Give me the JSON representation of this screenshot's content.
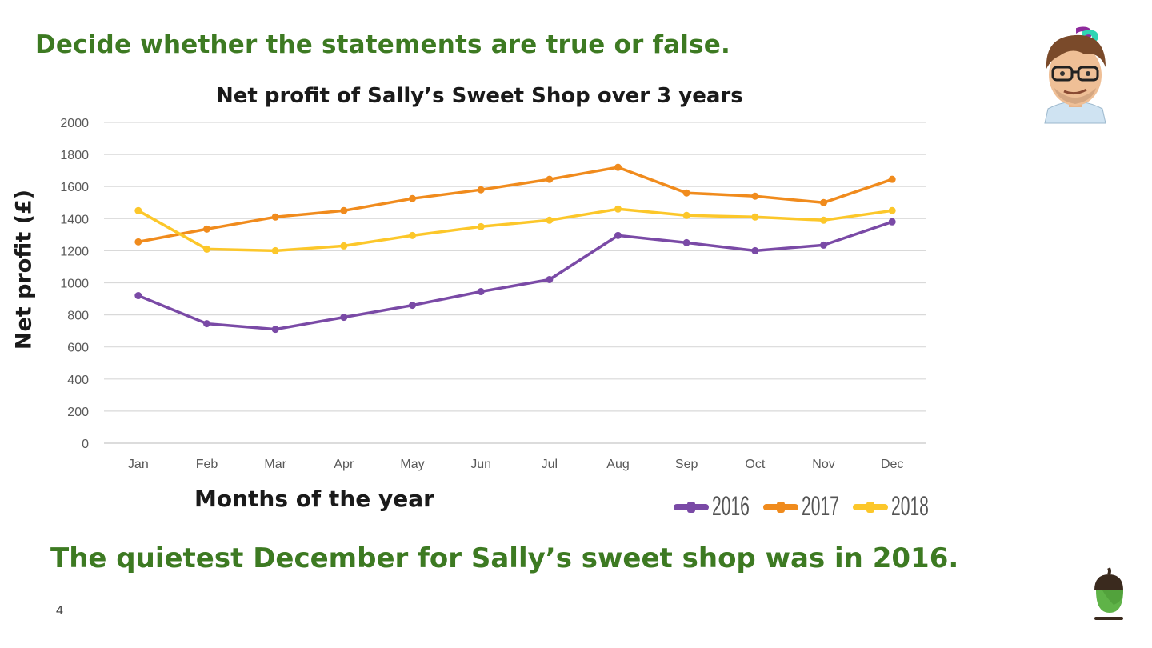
{
  "heading": "Decide whether the statements are true or false.",
  "statement": "The quietest December for Sally’s sweet shop was in 2016.",
  "page_number": "4",
  "icons": {
    "avatar": "thinking-person-avatar-icon",
    "logo": "acorn-icon"
  },
  "chart_data": {
    "type": "line",
    "title": "Net profit of Sally’s Sweet Shop over 3 years",
    "xlabel": "Months of the year",
    "ylabel": "Net profit (£)",
    "ylim": [
      0,
      2000
    ],
    "yticks": [
      0,
      200,
      400,
      600,
      800,
      1000,
      1200,
      1400,
      1600,
      1800,
      2000
    ],
    "grid": true,
    "legend_position": "bottom-right",
    "categories": [
      "Jan",
      "Feb",
      "Mar",
      "Apr",
      "May",
      "Jun",
      "Jul",
      "Aug",
      "Sep",
      "Oct",
      "Nov",
      "Dec"
    ],
    "series": [
      {
        "name": "2016",
        "color": "#7a4aa6",
        "values": [
          920,
          745,
          710,
          785,
          860,
          945,
          1020,
          1295,
          1250,
          1200,
          1235,
          1380
        ]
      },
      {
        "name": "2017",
        "color": "#f08b1d",
        "values": [
          1255,
          1335,
          1410,
          1450,
          1525,
          1580,
          1645,
          1720,
          1560,
          1540,
          1500,
          1645
        ]
      },
      {
        "name": "2018",
        "color": "#fcc72a",
        "values": [
          1450,
          1210,
          1200,
          1230,
          1295,
          1350,
          1390,
          1460,
          1420,
          1410,
          1390,
          1450
        ]
      }
    ]
  }
}
